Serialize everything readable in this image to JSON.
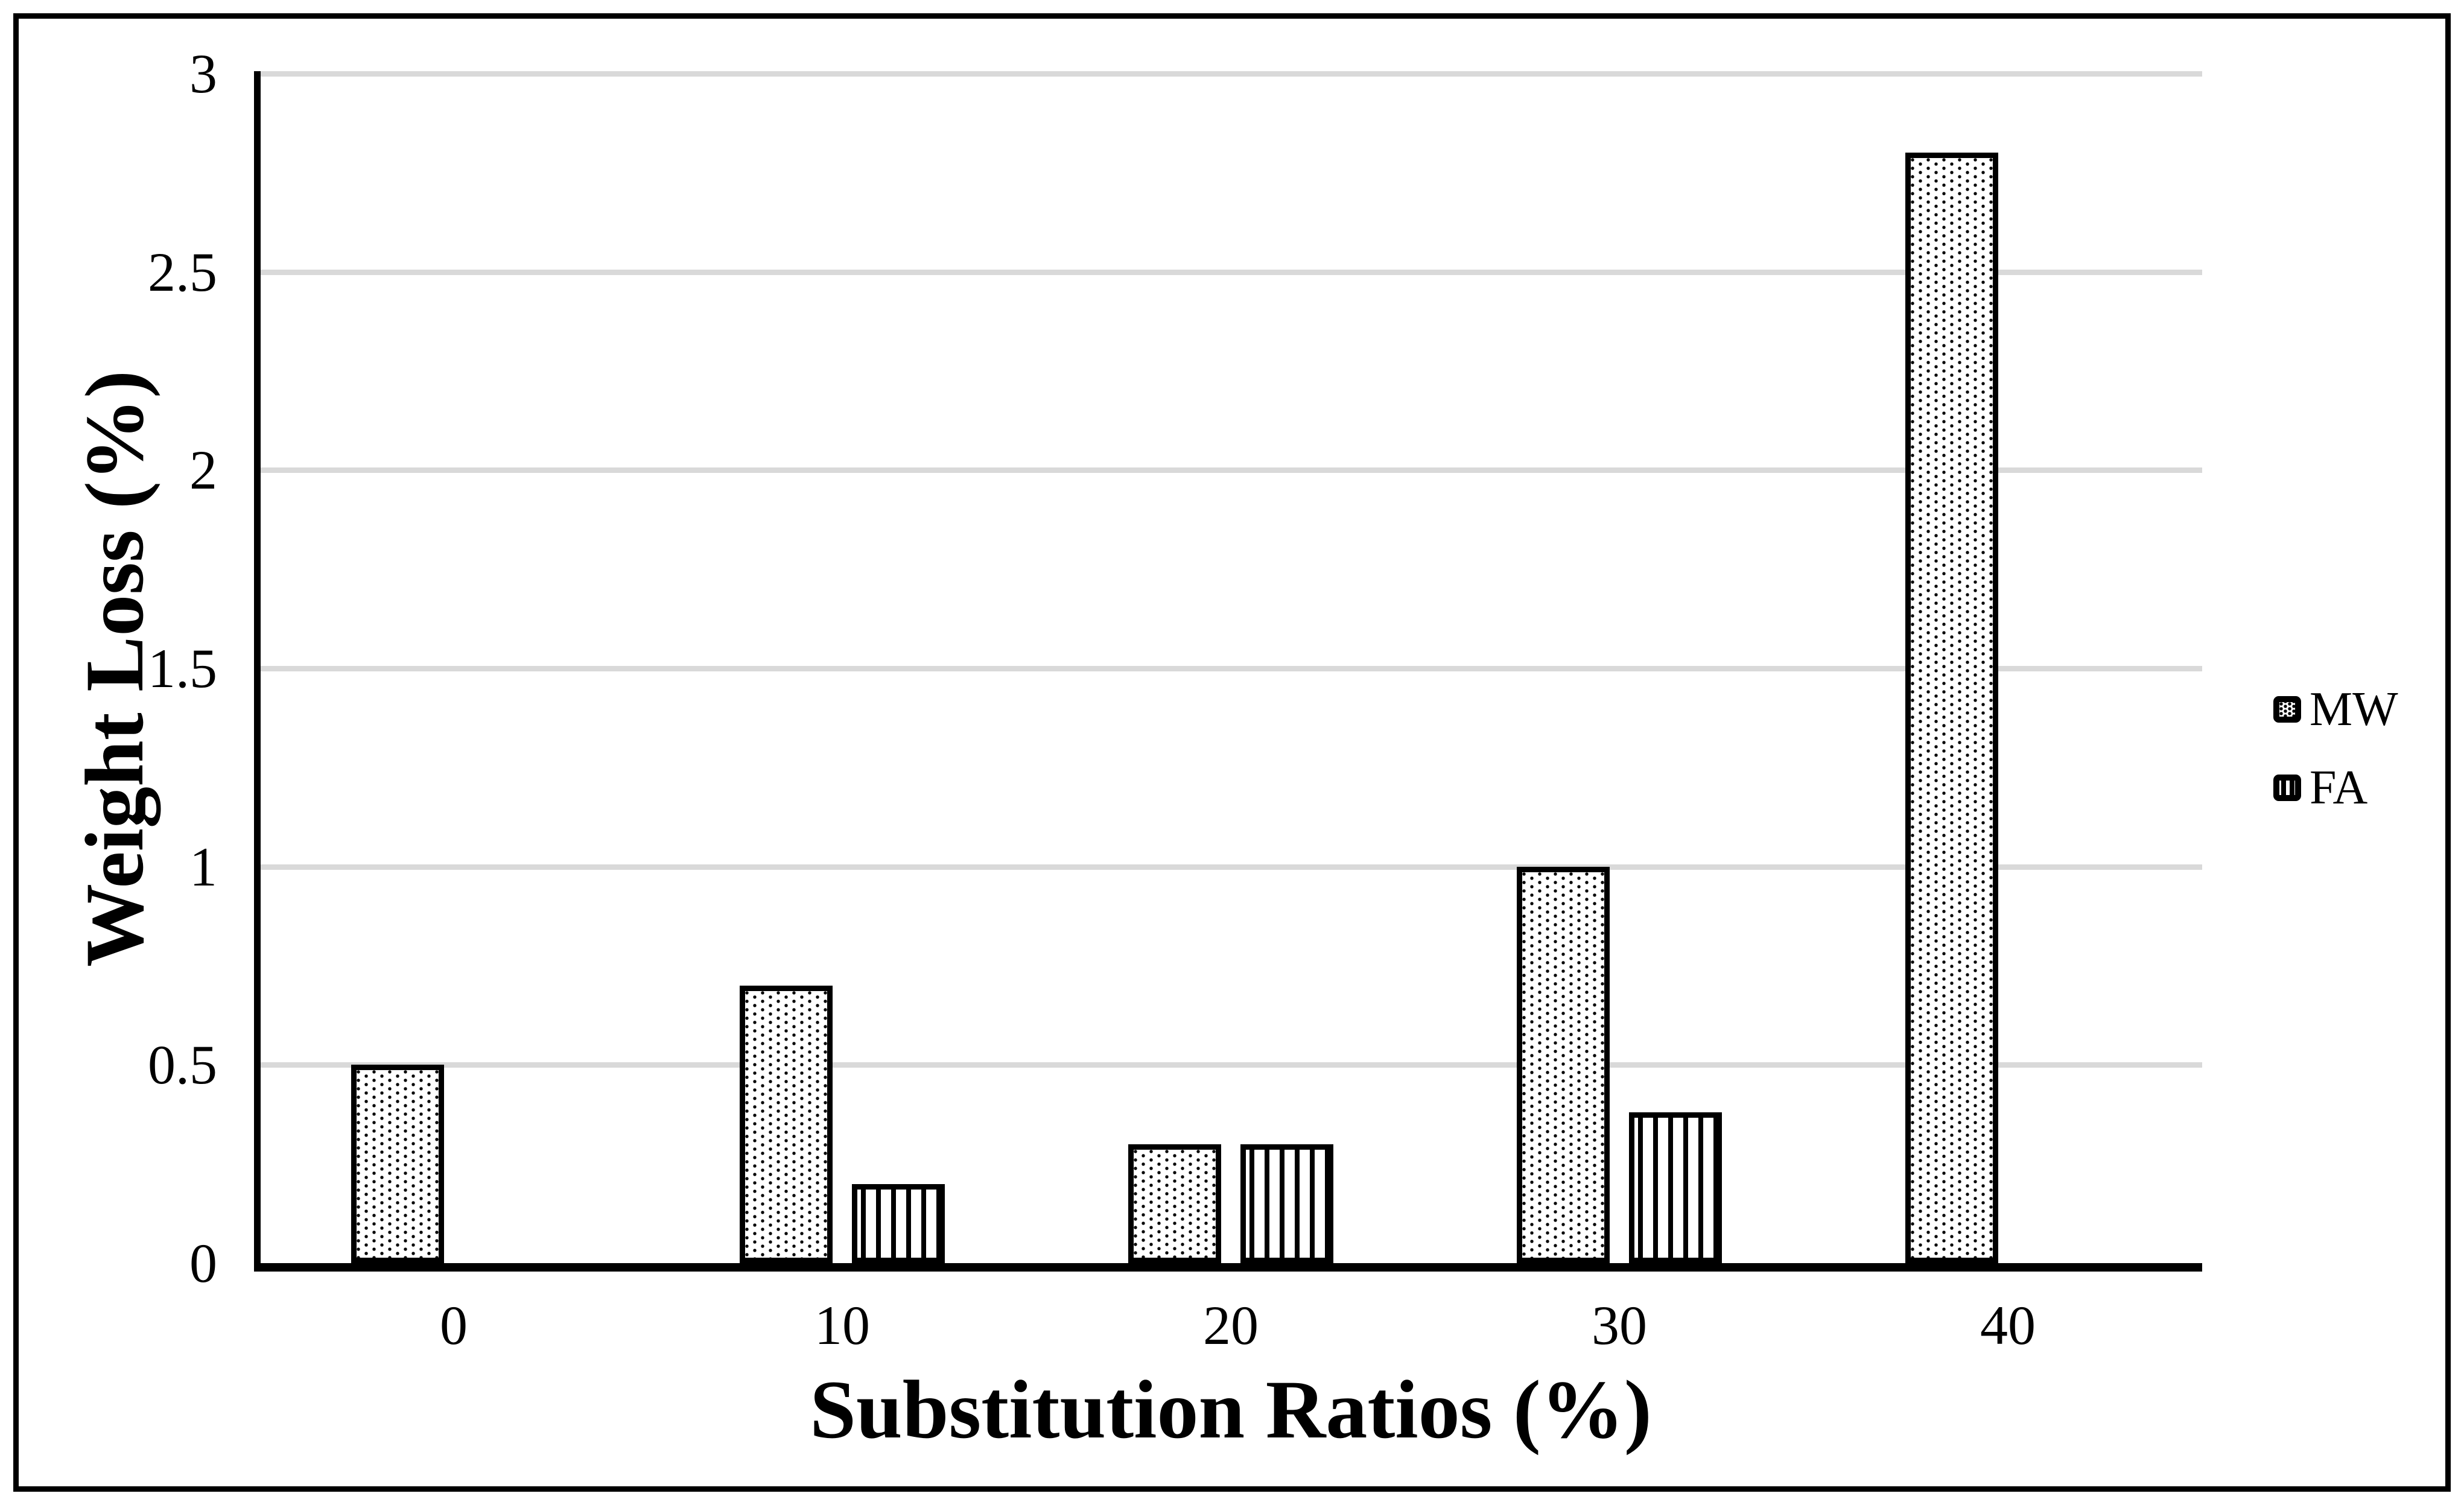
{
  "chart_data": {
    "type": "bar",
    "title": "",
    "xlabel": "Substitution Ratios (%)",
    "ylabel": "Weight Loss (%)",
    "categories": [
      "0",
      "10",
      "20",
      "30",
      "40"
    ],
    "series": [
      {
        "name": "MW",
        "pattern": "dots",
        "values": [
          0.5,
          0.7,
          0.3,
          1.0,
          2.8
        ]
      },
      {
        "name": "FA",
        "pattern": "vlines",
        "values": [
          null,
          0.2,
          0.3,
          0.38,
          null
        ]
      }
    ],
    "ylim": [
      0,
      3
    ],
    "yticks": [
      0,
      0.5,
      1,
      1.5,
      2,
      2.5,
      3
    ],
    "ytick_labels": [
      "0",
      "0.5",
      "1",
      "1.5",
      "2",
      "2.5",
      "3"
    ],
    "grid": true,
    "legend_position": "right",
    "colors": {
      "foreground": "#000000",
      "background": "#ffffff",
      "gridline": "#d9d9d9"
    }
  }
}
